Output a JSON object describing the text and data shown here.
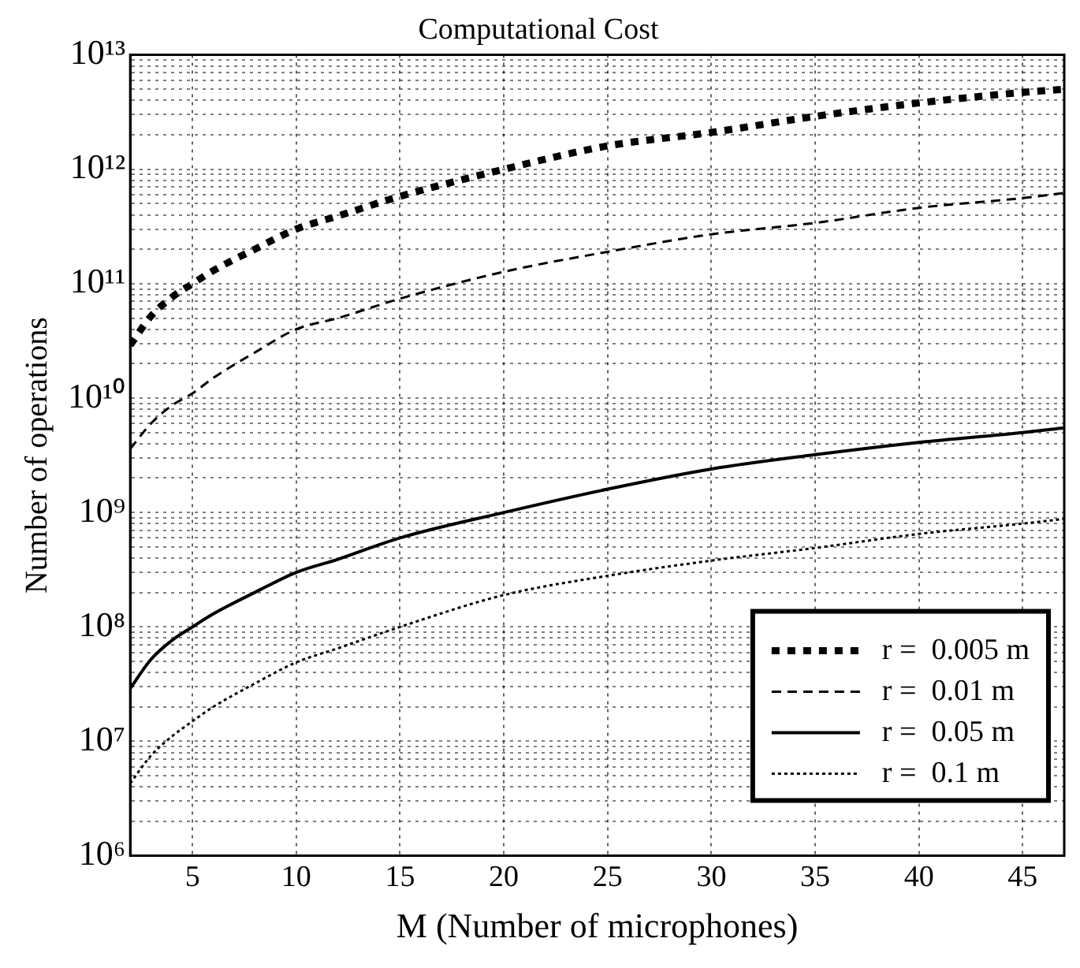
{
  "chart_data": {
    "type": "line",
    "title": "Computational Cost",
    "xlabel": "M (Number of microphones)",
    "ylabel": "Number of operations",
    "x": [
      2,
      3,
      4,
      5,
      6,
      8,
      10,
      12,
      15,
      20,
      25,
      30,
      35,
      40,
      45,
      47
    ],
    "series": [
      {
        "name": "r =  0.005 m",
        "color": "#000000",
        "line_style": "dotted",
        "values": [
          29000000000.0,
          52000000000.0,
          76000000000.0,
          100000000000.0,
          130000000000.0,
          200000000000.0,
          300000000000.0,
          390000000000.0,
          580000000000.0,
          1000000000000.0,
          1600000000000.0,
          2100000000000.0,
          2900000000000.0,
          3800000000000.0,
          4700000000000.0,
          5000000000000.0
        ]
      },
      {
        "name": "r =  0.01 m",
        "color": "#000000",
        "line_style": "dashed",
        "values": [
          3600000000.0,
          6000000000.0,
          8600000000.0,
          11000000000.0,
          15000000000.0,
          25000000000.0,
          40000000000.0,
          50000000000.0,
          74000000000.0,
          127000000000.0,
          190000000000.0,
          270000000000.0,
          340000000000.0,
          460000000000.0,
          560000000000.0,
          620000000000.0
        ]
      },
      {
        "name": "r =  0.05 m",
        "color": "#000000",
        "line_style": "solid",
        "values": [
          29000000.0,
          52000000.0,
          76000000.0,
          100000000.0,
          130000000.0,
          200000000.0,
          300000000.0,
          390000000.0,
          600000000.0,
          1000000000.0,
          1600000000.0,
          2400000000.0,
          3200000000.0,
          4100000000.0,
          5000000000.0,
          5500000000.0
        ]
      },
      {
        "name": "r =  0.1 m",
        "color": "#000000",
        "line_style": "dotted",
        "values": [
          4300000.0,
          7500000.0,
          11000000.0,
          15000000.0,
          20000000.0,
          32000000.0,
          49000000.0,
          65000000.0,
          100000000.0,
          190000000.0,
          280000000.0,
          380000000.0,
          490000000.0,
          650000000.0,
          800000000.0,
          880000000.0
        ]
      }
    ],
    "log": "y",
    "grid": true,
    "legend": "bottom right",
    "marker": "none",
    "xlim": [
      2,
      47
    ],
    "xticks": [
      5,
      10,
      15,
      20,
      25,
      30,
      35,
      40,
      45
    ],
    "ylim": [
      1000000.0,
      10000000000000.0
    ],
    "yticks": [
      {
        "value": 1000000.0,
        "label": "10⁶"
      },
      {
        "value": 2000000.0,
        "label": null
      },
      {
        "value": 3000000.0,
        "label": null
      },
      {
        "value": 4000000.0,
        "label": null
      },
      {
        "value": 5000000.0,
        "label": null
      },
      {
        "value": 6000000.0,
        "label": null
      },
      {
        "value": 7000000.0,
        "label": null
      },
      {
        "value": 8000000.0,
        "label": null
      },
      {
        "value": 9000000.0,
        "label": null
      },
      {
        "value": 10000000.0,
        "label": "10⁷"
      },
      {
        "value": 20000000.0,
        "label": null
      },
      {
        "value": 30000000.0,
        "label": null
      },
      {
        "value": 40000000.0,
        "label": null
      },
      {
        "value": 50000000.0,
        "label": null
      },
      {
        "value": 60000000.0,
        "label": null
      },
      {
        "value": 70000000.0,
        "label": null
      },
      {
        "value": 80000000.0,
        "label": null
      },
      {
        "value": 90000000.0,
        "label": null
      },
      {
        "value": 100000000.0,
        "label": "10⁸"
      },
      {
        "value": 200000000.0,
        "label": null
      },
      {
        "value": 300000000.0,
        "label": null
      },
      {
        "value": 400000000.0,
        "label": null
      },
      {
        "value": 500000000.0,
        "label": null
      },
      {
        "value": 600000000.0,
        "label": null
      },
      {
        "value": 700000000.0,
        "label": null
      },
      {
        "value": 800000000.0,
        "label": null
      },
      {
        "value": 900000000.0,
        "label": null
      },
      {
        "value": 1000000000.0,
        "label": "10⁹"
      },
      {
        "value": 2000000000.0,
        "label": null
      },
      {
        "value": 3000000000.0,
        "label": null
      },
      {
        "value": 4000000000.0,
        "label": null
      },
      {
        "value": 5000000000.0,
        "label": null
      },
      {
        "value": 6000000000.0,
        "label": null
      },
      {
        "value": 7000000000.0,
        "label": null
      },
      {
        "value": 8000000000.0,
        "label": null
      },
      {
        "value": 9000000000.0,
        "label": null
      },
      {
        "value": 10000000000.0,
        "label": "10¹⁰"
      },
      {
        "value": 20000000000.0,
        "label": null
      },
      {
        "value": 30000000000.0,
        "label": null
      },
      {
        "value": 40000000000.0,
        "label": null
      },
      {
        "value": 50000000000.0,
        "label": null
      },
      {
        "value": 60000000000.0,
        "label": null
      },
      {
        "value": 70000000000.0,
        "label": null
      },
      {
        "value": 80000000000.0,
        "label": null
      },
      {
        "value": 90000000000.0,
        "label": null
      },
      {
        "value": 100000000000.0,
        "label": "10¹¹"
      },
      {
        "value": 200000000000.0,
        "label": null
      },
      {
        "value": 300000000000.0,
        "label": null
      },
      {
        "value": 400000000000.0,
        "label": null
      },
      {
        "value": 500000000000.0,
        "label": null
      },
      {
        "value": 600000000000.0,
        "label": null
      },
      {
        "value": 700000000000.0,
        "label": null
      },
      {
        "value": 800000000000.0,
        "label": null
      },
      {
        "value": 900000000000.0,
        "label": null
      },
      {
        "value": 1000000000000.0,
        "label": "10¹²"
      },
      {
        "value": 2000000000000.0,
        "label": null
      },
      {
        "value": 3000000000000.0,
        "label": null
      },
      {
        "value": 4000000000000.0,
        "label": null
      },
      {
        "value": 5000000000000.0,
        "label": null
      },
      {
        "value": 6000000000000.0,
        "label": null
      },
      {
        "value": 7000000000000.0,
        "label": null
      },
      {
        "value": 8000000000000.0,
        "label": null
      },
      {
        "value": 9000000000000.0,
        "label": null
      },
      {
        "value": 10000000000000.0,
        "label": "10¹³"
      }
    ]
  }
}
